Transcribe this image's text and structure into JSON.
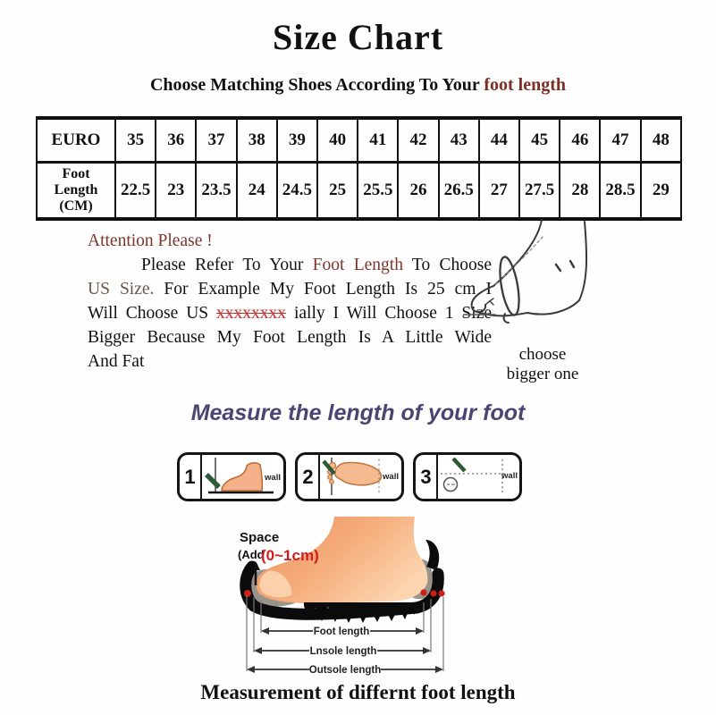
{
  "title": "Size Chart",
  "subtitle": {
    "prefix": "Choose Matching Shoes According To Your ",
    "highlight": "foot length"
  },
  "size_table": {
    "rows": [
      {
        "header": "EURO",
        "values": [
          "35",
          "36",
          "37",
          "38",
          "39",
          "40",
          "41",
          "42",
          "43",
          "44",
          "45",
          "46",
          "47",
          "48"
        ]
      },
      {
        "header": "Foot\nLength\n(CM)",
        "values": [
          "22.5",
          "23",
          "23.5",
          "24",
          "24.5",
          "25",
          "25.5",
          "26",
          "26.5",
          "27",
          "27.5",
          "28",
          "28.5",
          "29"
        ]
      }
    ]
  },
  "attention": {
    "heading": "Attention Please !",
    "line1": {
      "a": "Please Refer To Your ",
      "b": "Foot Length",
      "c": " To Choose"
    },
    "line2": {
      "a": "US Size.",
      "b": " For Example My Foot Length Is 25 cm I"
    },
    "line3": {
      "a": "Will Choose US ",
      "b": "xxxxxxxx",
      "c": " ially I Will Choose 1 Size"
    },
    "line4": "Bigger Because My Foot Length Is A Little Wide",
    "line5": "And Fat"
  },
  "sketch_caption": {
    "line1": "choose",
    "line2": "bigger one"
  },
  "measure_heading": "Measure the length of your foot",
  "steps": {
    "wall_label": "wall",
    "items": [
      {
        "number": "1"
      },
      {
        "number": "2"
      },
      {
        "number": "3"
      }
    ]
  },
  "diagram": {
    "space_label": "Space",
    "add_label": "(Add",
    "range_label": "(0~1cm)",
    "measures": {
      "foot": "Foot length",
      "insole": "Lnsole length",
      "outsole": "Outsole length"
    }
  },
  "caption": "Measurement of differnt foot length",
  "colors": {
    "accent_brown": "#7d352c",
    "highlight_red": "#c53030",
    "range_red": "#d41c1c",
    "heading_purple": "#4c4473",
    "pen_green": "#2d5a36",
    "skin": "#f4b088"
  }
}
